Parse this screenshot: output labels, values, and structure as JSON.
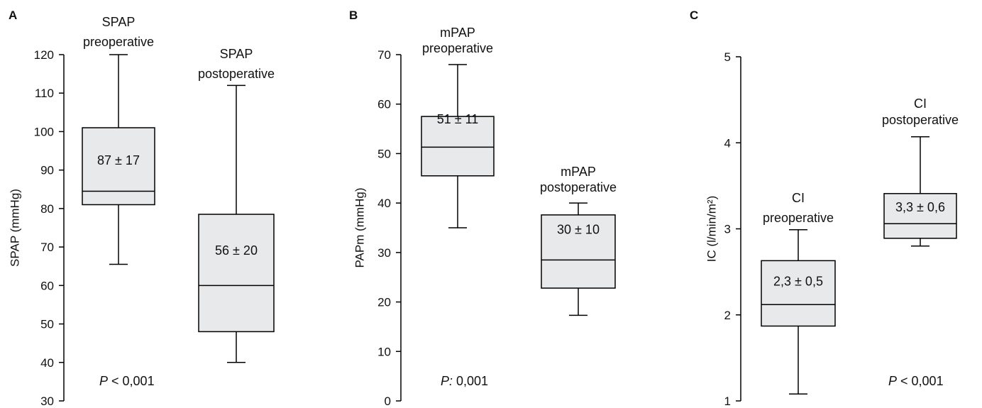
{
  "chart_data": [
    {
      "type": "box",
      "panel": "A",
      "ylabel": "SPAP (mmHg)",
      "ylim": [
        30,
        120
      ],
      "yticks": [
        30,
        40,
        50,
        60,
        70,
        80,
        90,
        100,
        110,
        120
      ],
      "groups": [
        {
          "label_lines": [
            "SPAP",
            "preoperative"
          ],
          "whisker_low": 65.5,
          "q1": 81,
          "median": 84.5,
          "q3": 101,
          "whisker_high": 120,
          "stat": "87 ± 17"
        },
        {
          "label_lines": [
            "SPAP",
            "postoperative"
          ],
          "whisker_low": 40,
          "q1": 48,
          "median": 60,
          "q3": 78.5,
          "whisker_high": 112,
          "stat": "56 ± 20"
        }
      ],
      "pvalue": {
        "prefix": "P",
        "text": "< 0,001"
      }
    },
    {
      "type": "box",
      "panel": "B",
      "ylabel": "PAPm (mmHg)",
      "ylim": [
        0,
        70
      ],
      "yticks": [
        0,
        10,
        20,
        30,
        40,
        50,
        60,
        70
      ],
      "groups": [
        {
          "label_lines": [
            "mPAP",
            "preoperative"
          ],
          "whisker_low": 35,
          "q1": 45.5,
          "median": 51.3,
          "q3": 57.5,
          "whisker_high": 68,
          "stat": "51 ± 11"
        },
        {
          "label_lines": [
            "mPAP",
            "postoperative"
          ],
          "whisker_low": 17.3,
          "q1": 22.8,
          "median": 28.5,
          "q3": 37.6,
          "whisker_high": 40,
          "stat": "30 ± 10"
        }
      ],
      "pvalue": {
        "prefix": "P:",
        "text": "0,001"
      }
    },
    {
      "type": "box",
      "panel": "C",
      "ylabel": "IC (l/min/m²)",
      "ylim": [
        1,
        5
      ],
      "yticks": [
        1,
        2,
        3,
        4,
        5
      ],
      "groups": [
        {
          "label_lines": [
            "CI",
            "preoperative"
          ],
          "whisker_low": 1.08,
          "q1": 1.87,
          "median": 2.12,
          "q3": 2.63,
          "whisker_high": 2.99,
          "stat": "2,3 ± 0,5"
        },
        {
          "label_lines": [
            "CI",
            "postoperative"
          ],
          "whisker_low": 2.8,
          "q1": 2.89,
          "median": 3.06,
          "q3": 3.41,
          "whisker_high": 4.07,
          "stat": "3,3 ± 0,6"
        }
      ],
      "pvalue": {
        "prefix": "P",
        "text": "< 0,001"
      }
    }
  ]
}
